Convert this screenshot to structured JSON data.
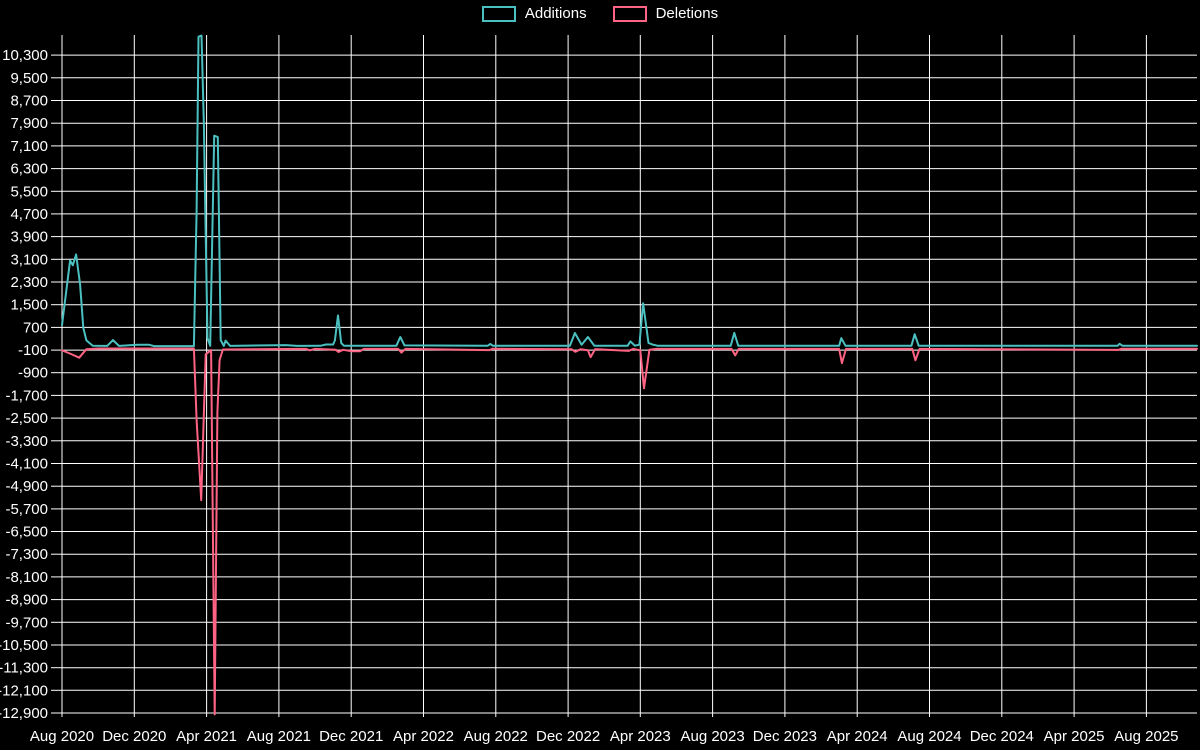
{
  "legend": {
    "items": [
      {
        "label": "Additions",
        "color": "#4bc0c0"
      },
      {
        "label": "Deletions",
        "color": "#ff6384"
      }
    ]
  },
  "chart_data": {
    "type": "line",
    "title": "",
    "background": "#000000",
    "grid_color": "#ffffff",
    "text_color": "#ffffff",
    "legend_position": "top",
    "grid": true,
    "x_axis": {
      "unit": "months since Aug 2020",
      "range_months": [
        0,
        62.8
      ],
      "ticks": [
        {
          "month": 0,
          "label": "Aug 2020"
        },
        {
          "month": 4,
          "label": "Dec 2020"
        },
        {
          "month": 8,
          "label": "Apr 2021"
        },
        {
          "month": 12,
          "label": "Aug 2021"
        },
        {
          "month": 16,
          "label": "Dec 2021"
        },
        {
          "month": 20,
          "label": "Apr 2022"
        },
        {
          "month": 24,
          "label": "Aug 2022"
        },
        {
          "month": 28,
          "label": "Dec 2022"
        },
        {
          "month": 32,
          "label": "Apr 2023"
        },
        {
          "month": 36,
          "label": "Aug 2023"
        },
        {
          "month": 40,
          "label": "Dec 2023"
        },
        {
          "month": 44,
          "label": "Apr 2024"
        },
        {
          "month": 48,
          "label": "Aug 2024"
        },
        {
          "month": 52,
          "label": "Dec 2024"
        },
        {
          "month": 56,
          "label": "Apr 2025"
        },
        {
          "month": 60,
          "label": "Aug 2025"
        }
      ]
    },
    "y_axis": {
      "min": -13040,
      "max": 11010,
      "tick_step": 800,
      "tick_values": [
        10300,
        9500,
        8700,
        7900,
        7100,
        6300,
        5500,
        4700,
        3900,
        3100,
        2300,
        1500,
        700,
        -100,
        -900,
        -1700,
        -2500,
        -3300,
        -4100,
        -4900,
        -5700,
        -6500,
        -7300,
        -8100,
        -8900,
        -9700,
        -10500,
        -11300,
        -12100,
        -12900
      ]
    },
    "series": [
      {
        "name": "Additions",
        "color": "#4bc0c0",
        "points": [
          [
            0,
            780
          ],
          [
            0.45,
            3060
          ],
          [
            0.6,
            2890
          ],
          [
            0.78,
            3270
          ],
          [
            1,
            2210
          ],
          [
            1.18,
            680
          ],
          [
            1.35,
            240
          ],
          [
            1.7,
            50
          ],
          [
            2.5,
            45
          ],
          [
            2.82,
            250
          ],
          [
            3.15,
            45
          ],
          [
            4.2,
            90
          ],
          [
            4.8,
            90
          ],
          [
            5.1,
            40
          ],
          [
            7.3,
            40
          ],
          [
            7.45,
            4800
          ],
          [
            7.55,
            10950
          ],
          [
            7.72,
            10990
          ],
          [
            7.85,
            7830
          ],
          [
            7.92,
            5190
          ],
          [
            8.05,
            320
          ],
          [
            8.2,
            50
          ],
          [
            8.42,
            7460
          ],
          [
            8.62,
            7410
          ],
          [
            8.78,
            250
          ],
          [
            8.95,
            45
          ],
          [
            9.05,
            235
          ],
          [
            9.3,
            45
          ],
          [
            12.4,
            75
          ],
          [
            13,
            45
          ],
          [
            14.3,
            50
          ],
          [
            14.6,
            95
          ],
          [
            15,
            95
          ],
          [
            15.1,
            240
          ],
          [
            15.27,
            1120
          ],
          [
            15.45,
            150
          ],
          [
            15.6,
            55
          ],
          [
            18.5,
            55
          ],
          [
            18.72,
            360
          ],
          [
            18.95,
            65
          ],
          [
            23.55,
            50
          ],
          [
            23.7,
            115
          ],
          [
            23.85,
            50
          ],
          [
            28.1,
            50
          ],
          [
            28.38,
            500
          ],
          [
            28.75,
            85
          ],
          [
            29.1,
            360
          ],
          [
            29.45,
            55
          ],
          [
            31.3,
            55
          ],
          [
            31.45,
            205
          ],
          [
            31.7,
            55
          ],
          [
            31.95,
            90
          ],
          [
            32.15,
            1550
          ],
          [
            32.45,
            150
          ],
          [
            32.7,
            90
          ],
          [
            32.95,
            55
          ],
          [
            37,
            50
          ],
          [
            37.2,
            505
          ],
          [
            37.42,
            50
          ],
          [
            43,
            50
          ],
          [
            43.12,
            320
          ],
          [
            43.35,
            50
          ],
          [
            47,
            50
          ],
          [
            47.18,
            460
          ],
          [
            47.4,
            50
          ],
          [
            58.4,
            50
          ],
          [
            58.52,
            120
          ],
          [
            58.68,
            50
          ],
          [
            62.8,
            50
          ]
        ]
      },
      {
        "name": "Deletions",
        "color": "#ff6384",
        "points": [
          [
            0,
            -110
          ],
          [
            0.5,
            -240
          ],
          [
            0.95,
            -370
          ],
          [
            1.35,
            -70
          ],
          [
            2,
            -45
          ],
          [
            7.3,
            -45
          ],
          [
            7.45,
            -2570
          ],
          [
            7.7,
            -5390
          ],
          [
            7.95,
            -250
          ],
          [
            8.25,
            -100
          ],
          [
            8.45,
            -12950
          ],
          [
            8.6,
            -2280
          ],
          [
            8.72,
            -450
          ],
          [
            8.9,
            -80
          ],
          [
            13.5,
            -60
          ],
          [
            13.7,
            -110
          ],
          [
            14,
            -60
          ],
          [
            15.15,
            -90
          ],
          [
            15.3,
            -170
          ],
          [
            15.55,
            -90
          ],
          [
            16,
            -140
          ],
          [
            16.5,
            -140
          ],
          [
            16.7,
            -60
          ],
          [
            18.6,
            -60
          ],
          [
            18.78,
            -190
          ],
          [
            19,
            -60
          ],
          [
            23.65,
            -100
          ],
          [
            23.8,
            -55
          ],
          [
            28.2,
            -70
          ],
          [
            28.4,
            -160
          ],
          [
            28.7,
            -70
          ],
          [
            29.1,
            -110
          ],
          [
            29.25,
            -350
          ],
          [
            29.5,
            -65
          ],
          [
            31.35,
            -130
          ],
          [
            31.6,
            -60
          ],
          [
            32,
            -110
          ],
          [
            32.2,
            -1450
          ],
          [
            32.5,
            -90
          ],
          [
            32.9,
            -60
          ],
          [
            37.05,
            -60
          ],
          [
            37.25,
            -290
          ],
          [
            37.45,
            -60
          ],
          [
            43,
            -60
          ],
          [
            43.15,
            -560
          ],
          [
            43.38,
            -60
          ],
          [
            47.05,
            -60
          ],
          [
            47.22,
            -460
          ],
          [
            47.45,
            -60
          ],
          [
            58.45,
            -95
          ],
          [
            58.6,
            -55
          ],
          [
            62.8,
            -55
          ]
        ]
      }
    ]
  }
}
